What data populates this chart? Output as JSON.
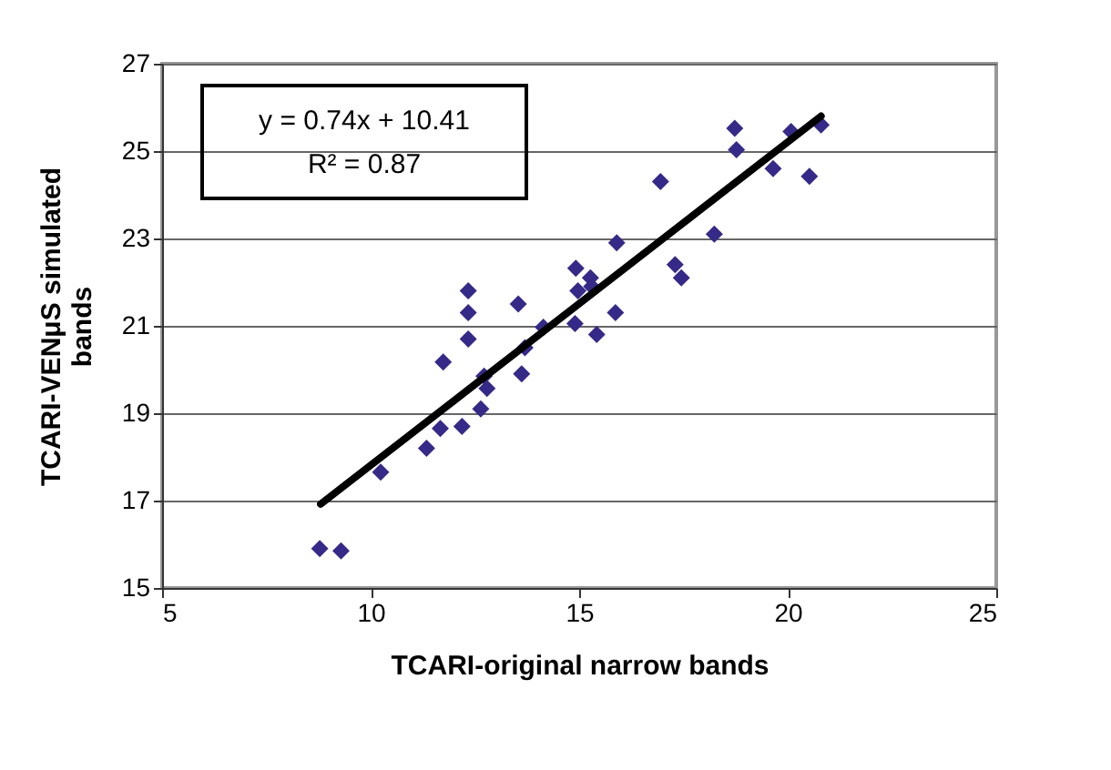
{
  "chart_data": {
    "type": "scatter",
    "xlabel": "TCARI-original narrow bands",
    "ylabel": "TCARI-VENμS simulated bands",
    "xlim": [
      5,
      25
    ],
    "xticks": [
      5,
      10,
      15,
      20,
      25
    ],
    "ylim": [
      15,
      27
    ],
    "yticks": [
      15,
      17,
      19,
      21,
      23,
      25,
      27
    ],
    "grid": "y",
    "marker": "diamond",
    "annotations": [
      "y = 0.74x + 10.41",
      "R² = 0.87"
    ],
    "series": [
      {
        "color": "#352a87",
        "x": [
          8.78,
          9.29,
          10.24,
          11.34,
          11.67,
          12.19,
          11.74,
          12.34,
          12.34,
          12.34,
          12.64,
          12.79,
          12.72,
          13.54,
          13.62,
          13.7,
          14.14,
          14.9,
          15.42,
          18.73,
          18.77,
          20.08,
          20.8,
          19.65,
          20.52,
          16.95,
          18.24,
          15.9,
          17.3,
          17.45,
          14.92,
          15.27,
          14.97,
          15.87,
          15.3
        ],
        "values": [
          15.9,
          15.85,
          17.65,
          18.2,
          18.65,
          18.7,
          20.17,
          20.7,
          21.3,
          21.8,
          19.1,
          19.57,
          19.85,
          21.5,
          19.9,
          20.5,
          20.97,
          21.05,
          20.8,
          25.52,
          25.03,
          25.45,
          25.6,
          24.6,
          24.42,
          24.3,
          23.1,
          22.9,
          22.4,
          22.1,
          22.32,
          22.1,
          21.8,
          21.3,
          21.9
        ]
      },
      {
        "type": "line",
        "color": "#000000",
        "marker": "none",
        "x": [
          8.8,
          20.8
        ],
        "values": [
          16.92,
          25.8
        ]
      }
    ]
  }
}
